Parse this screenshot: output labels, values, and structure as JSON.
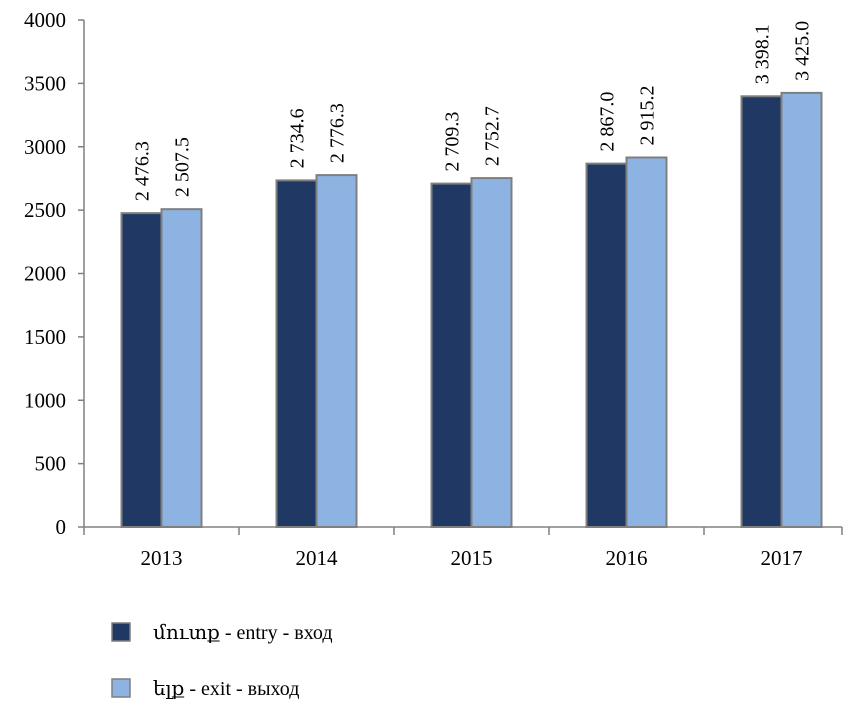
{
  "chart_data": {
    "type": "bar",
    "categories": [
      "2013",
      "2014",
      "2015",
      "2016",
      "2017"
    ],
    "series": [
      {
        "name": "մուտք - entry - вход",
        "values": [
          2476.3,
          2734.6,
          2709.3,
          2867.0,
          3398.1
        ],
        "labels": [
          "2 476.3",
          "2 734.6",
          "2 709.3",
          "2 867.0",
          "3 398.1"
        ],
        "color": "#1f3864"
      },
      {
        "name": "ելք - exit - выход",
        "values": [
          2507.5,
          2776.3,
          2752.7,
          2915.2,
          3425.0
        ],
        "labels": [
          "2 507.5",
          "2 776.3",
          "2 752.7",
          "2 915.2",
          "3 425.0"
        ],
        "color": "#8db3e2"
      }
    ],
    "ylim": [
      0,
      4000
    ],
    "yticks": [
      "0",
      "500",
      "1000",
      "1500",
      "2000",
      "2500",
      "3000",
      "3500",
      "4000"
    ],
    "grid": false,
    "legend_position": "bottom",
    "bar_edge_color": "#7f7f7f",
    "axis_color": "#808080"
  }
}
